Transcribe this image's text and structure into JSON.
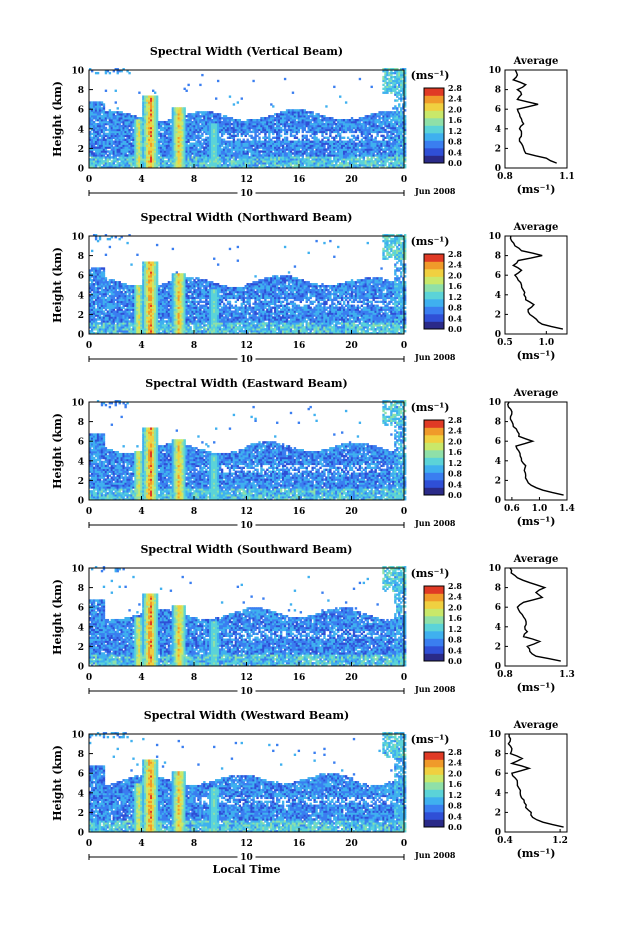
{
  "chart_data": [
    {
      "type": "heatmap",
      "title": "Spectral Width (Vertical Beam)",
      "ylabel": "Height (km)",
      "ylim": [
        0,
        10
      ],
      "yticks": [
        "0",
        "2",
        "4",
        "6",
        "8",
        "10"
      ],
      "xlim": [
        0,
        24
      ],
      "xticks": [
        "0",
        "4",
        "8",
        "12",
        "16",
        "20",
        "0"
      ],
      "date_label": "10",
      "month_label": "Jun 2008",
      "colorbar": {
        "unit": "(ms⁻¹)",
        "range": [
          0,
          2.8
        ],
        "ticks": [
          "0.0",
          "0.4",
          "0.8",
          "1.2",
          "1.6",
          "2.0",
          "2.4",
          "2.8"
        ]
      },
      "average": {
        "title": "Average",
        "xlabel": "(ms⁻¹)",
        "xlim": [
          0.8,
          1.1
        ],
        "xticks": [
          "0.8",
          "1.1"
        ],
        "ylim": [
          0,
          10
        ],
        "yticks": [
          "0",
          "2",
          "4",
          "6",
          "8",
          "10"
        ]
      },
      "profile": [
        [
          0.5,
          1.05
        ],
        [
          1,
          1.0
        ],
        [
          1.5,
          0.9
        ],
        [
          2,
          0.89
        ],
        [
          2.5,
          0.88
        ],
        [
          3,
          0.87
        ],
        [
          3.5,
          0.88
        ],
        [
          4,
          0.87
        ],
        [
          4.5,
          0.89
        ],
        [
          5,
          0.88
        ],
        [
          5.5,
          0.87
        ],
        [
          6,
          0.86
        ],
        [
          6.5,
          0.96
        ],
        [
          7,
          0.86
        ],
        [
          7.5,
          0.88
        ],
        [
          8,
          0.86
        ],
        [
          8.5,
          0.9
        ],
        [
          9,
          0.84
        ],
        [
          9.5,
          0.86
        ],
        [
          10,
          0.85
        ]
      ]
    },
    {
      "type": "heatmap",
      "title": "Spectral Width (Northward Beam)",
      "ylabel": "Height (km)",
      "ylim": [
        0,
        10
      ],
      "yticks": [
        "0",
        "2",
        "4",
        "6",
        "8",
        "10"
      ],
      "xlim": [
        0,
        24
      ],
      "xticks": [
        "0",
        "4",
        "8",
        "12",
        "16",
        "20",
        "0"
      ],
      "date_label": "10",
      "month_label": "Jun 2008",
      "colorbar": {
        "unit": "(ms⁻¹)",
        "range": [
          0,
          2.8
        ],
        "ticks": [
          "0.0",
          "0.4",
          "0.8",
          "1.2",
          "1.6",
          "2.0",
          "2.4",
          "2.8"
        ]
      },
      "average": {
        "title": "Average",
        "xlabel": "(ms⁻¹)",
        "xlim": [
          0.5,
          1.25
        ],
        "xticks": [
          "0.5",
          "1.0"
        ],
        "ylim": [
          0,
          10
        ],
        "yticks": [
          "0",
          "2",
          "4",
          "6",
          "8",
          "10"
        ]
      },
      "profile": [
        [
          0.5,
          1.2
        ],
        [
          1,
          0.95
        ],
        [
          1.5,
          0.88
        ],
        [
          2,
          0.8
        ],
        [
          2.5,
          0.78
        ],
        [
          3,
          0.85
        ],
        [
          3.5,
          0.75
        ],
        [
          4,
          0.73
        ],
        [
          4.5,
          0.72
        ],
        [
          5,
          0.7
        ],
        [
          5.5,
          0.66
        ],
        [
          6,
          0.62
        ],
        [
          6.5,
          0.7
        ],
        [
          7,
          0.6
        ],
        [
          7.5,
          0.66
        ],
        [
          8,
          0.95
        ],
        [
          8.5,
          0.7
        ],
        [
          9,
          0.62
        ],
        [
          9.5,
          0.58
        ],
        [
          10,
          0.57
        ]
      ]
    },
    {
      "type": "heatmap",
      "title": "Spectral Width (Eastward Beam)",
      "ylabel": "Height (km)",
      "ylim": [
        0,
        10
      ],
      "yticks": [
        "0",
        "2",
        "4",
        "6",
        "8",
        "10"
      ],
      "xlim": [
        0,
        24
      ],
      "xticks": [
        "0",
        "4",
        "8",
        "12",
        "16",
        "20",
        "0"
      ],
      "date_label": "10",
      "month_label": "Jun 2008",
      "colorbar": {
        "unit": "(ms⁻¹)",
        "range": [
          0,
          2.8
        ],
        "ticks": [
          "0.0",
          "0.4",
          "0.8",
          "1.2",
          "1.6",
          "2.0",
          "2.4",
          "2.8"
        ]
      },
      "average": {
        "title": "Average",
        "xlabel": "(ms⁻¹)",
        "xlim": [
          0.5,
          1.4
        ],
        "xticks": [
          "0.6",
          "1.0",
          "1.4"
        ],
        "ylim": [
          0,
          10
        ],
        "yticks": [
          "0",
          "2",
          "4",
          "6",
          "8",
          "10"
        ]
      },
      "profile": [
        [
          0.5,
          1.35
        ],
        [
          1,
          1.05
        ],
        [
          1.5,
          0.88
        ],
        [
          2,
          0.82
        ],
        [
          2.5,
          0.8
        ],
        [
          3,
          0.78
        ],
        [
          3.5,
          0.8
        ],
        [
          4,
          0.74
        ],
        [
          4.5,
          0.72
        ],
        [
          5,
          0.7
        ],
        [
          5.5,
          0.66
        ],
        [
          6,
          0.9
        ],
        [
          6.5,
          0.7
        ],
        [
          7,
          0.68
        ],
        [
          7.5,
          0.62
        ],
        [
          8,
          0.6
        ],
        [
          8.5,
          0.58
        ],
        [
          9,
          0.6
        ],
        [
          9.5,
          0.55
        ],
        [
          10,
          0.56
        ]
      ]
    },
    {
      "type": "heatmap",
      "title": "Spectral Width (Southward Beam)",
      "ylabel": "Height (km)",
      "ylim": [
        0,
        10
      ],
      "yticks": [
        "0",
        "2",
        "4",
        "6",
        "8",
        "10"
      ],
      "xlim": [
        0,
        24
      ],
      "xticks": [
        "0",
        "4",
        "8",
        "12",
        "16",
        "20",
        "0"
      ],
      "date_label": "10",
      "month_label": "Jun 2008",
      "colorbar": {
        "unit": "(ms⁻¹)",
        "range": [
          0,
          2.8
        ],
        "ticks": [
          "0.0",
          "0.4",
          "0.8",
          "1.2",
          "1.6",
          "2.0",
          "2.4",
          "2.8"
        ]
      },
      "average": {
        "title": "Average",
        "xlabel": "(ms⁻¹)",
        "xlim": [
          0.8,
          1.3
        ],
        "xticks": [
          "0.8",
          "1.3"
        ],
        "ylim": [
          0,
          10
        ],
        "yticks": [
          "0",
          "2",
          "4",
          "6",
          "8",
          "10"
        ]
      },
      "profile": [
        [
          0.5,
          1.25
        ],
        [
          1,
          1.05
        ],
        [
          1.5,
          1.0
        ],
        [
          2,
          0.98
        ],
        [
          2.5,
          1.08
        ],
        [
          3,
          0.95
        ],
        [
          3.5,
          0.98
        ],
        [
          4,
          0.96
        ],
        [
          4.5,
          0.97
        ],
        [
          5,
          0.95
        ],
        [
          5.5,
          0.92
        ],
        [
          6,
          0.9
        ],
        [
          6.5,
          0.95
        ],
        [
          7,
          1.1
        ],
        [
          7.5,
          1.05
        ],
        [
          8,
          1.12
        ],
        [
          8.5,
          1.0
        ],
        [
          9,
          0.9
        ],
        [
          9.5,
          0.85
        ],
        [
          10,
          0.84
        ]
      ]
    },
    {
      "type": "heatmap",
      "title": "Spectral Width (Westward Beam)",
      "ylabel": "Height (km)",
      "ylim": [
        0,
        10
      ],
      "yticks": [
        "0",
        "2",
        "4",
        "6",
        "8",
        "10"
      ],
      "xlim": [
        0,
        24
      ],
      "xticks": [
        "0",
        "4",
        "8",
        "12",
        "16",
        "20",
        "0"
      ],
      "date_label": "10",
      "month_label": "Jun 2008",
      "xlabel": "Local Time",
      "colorbar": {
        "unit": "(ms⁻¹)",
        "range": [
          0,
          2.8
        ],
        "ticks": [
          "0.0",
          "0.4",
          "0.8",
          "1.2",
          "1.6",
          "2.0",
          "2.4",
          "2.8"
        ]
      },
      "average": {
        "title": "Average",
        "xlabel": "(ms⁻¹)",
        "xlim": [
          0.4,
          1.3
        ],
        "xticks": [
          "0.4",
          "1.2"
        ],
        "ylim": [
          0,
          10
        ],
        "yticks": [
          "0",
          "2",
          "4",
          "6",
          "8",
          "10"
        ]
      },
      "profile": [
        [
          0.5,
          1.25
        ],
        [
          1,
          0.95
        ],
        [
          1.5,
          0.8
        ],
        [
          2,
          0.78
        ],
        [
          2.5,
          0.7
        ],
        [
          3,
          0.68
        ],
        [
          3.5,
          0.64
        ],
        [
          4,
          0.62
        ],
        [
          4.5,
          0.6
        ],
        [
          5,
          0.58
        ],
        [
          5.5,
          0.55
        ],
        [
          6,
          0.5
        ],
        [
          6.5,
          0.75
        ],
        [
          7,
          0.5
        ],
        [
          7.5,
          0.65
        ],
        [
          8,
          0.48
        ],
        [
          8.5,
          0.5
        ],
        [
          9,
          0.45
        ],
        [
          9.5,
          0.48
        ],
        [
          10,
          0.46
        ]
      ]
    }
  ],
  "colors": {
    "scale": [
      "#2a2a88",
      "#2f4fd6",
      "#3a7ef0",
      "#3fb0ef",
      "#5bd3d8",
      "#8fe0a8",
      "#c9e86a",
      "#f0d040",
      "#f09a2a",
      "#e03a25"
    ]
  }
}
